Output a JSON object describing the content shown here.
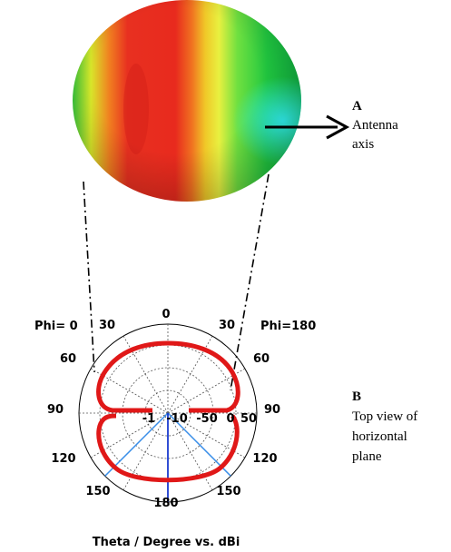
{
  "annotations": [
    {
      "letter": "A",
      "lines": [
        "Antenna",
        "axis"
      ]
    },
    {
      "letter": "B",
      "lines": [
        "Top view of",
        "horizontal",
        "plane"
      ]
    }
  ],
  "polar": {
    "phi_left": "Phi= 0",
    "phi_right": "Phi=180",
    "angle_labels": [
      "0",
      "30",
      "30",
      "60",
      "60",
      "90",
      "90",
      "120",
      "120",
      "150",
      "150",
      "180"
    ],
    "radial_labels": [
      "-1",
      "-10",
      "-50",
      "0",
      "50"
    ],
    "caption": "Theta / Degree vs. dBi"
  }
}
